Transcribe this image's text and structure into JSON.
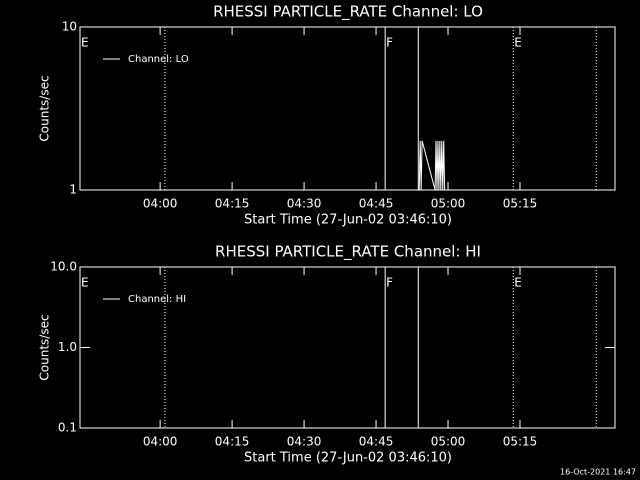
{
  "chart_data": [
    {
      "type": "line",
      "title": "RHESSI PARTICLE_RATE Channel: LO",
      "xlabel": "Start Time (27-Jun-02 03:46:10)",
      "ylabel": "Counts/sec",
      "log_y": true,
      "xlim": [
        223.3,
        334.8
      ],
      "ylim": [
        1,
        10
      ],
      "xticks": [
        {
          "value": 240,
          "label": "04:00"
        },
        {
          "value": 255,
          "label": "04:15"
        },
        {
          "value": 270,
          "label": "04:30"
        },
        {
          "value": 285,
          "label": "04:45"
        },
        {
          "value": 300,
          "label": "05:00"
        },
        {
          "value": 315,
          "label": "05:15"
        }
      ],
      "yticks": [
        1,
        10
      ],
      "vlines": [
        {
          "x": 241.0,
          "style": "dotted"
        },
        {
          "x": 286.9,
          "style": "solid"
        },
        {
          "x": 293.8,
          "style": "solid"
        },
        {
          "x": 313.6,
          "style": "dotted"
        },
        {
          "x": 330.9,
          "style": "dotted"
        }
      ],
      "annotations": [
        {
          "x": 223.3,
          "text": "E"
        },
        {
          "x": 286.9,
          "text": "F"
        },
        {
          "x": 313.6,
          "text": "E"
        }
      ],
      "series": [
        {
          "name": "Channel: LO",
          "color": "#ffffff",
          "x": [
            294.0,
            294.2,
            294.4,
            294.6,
            297.3,
            297.5,
            297.7,
            297.9,
            298.1,
            298.3,
            298.5,
            298.7,
            298.9,
            299.1,
            299.3
          ],
          "values": [
            1,
            2,
            1,
            2,
            1,
            2,
            1,
            2,
            1,
            2,
            1,
            2,
            1,
            2,
            1
          ]
        }
      ]
    },
    {
      "type": "line",
      "title": "RHESSI PARTICLE_RATE Channel: HI",
      "xlabel": "Start Time (27-Jun-02 03:46:10)",
      "ylabel": "Counts/sec",
      "log_y": true,
      "xlim": [
        223.3,
        334.8
      ],
      "ylim": [
        0.1,
        10
      ],
      "xticks": [
        {
          "value": 240,
          "label": "04:00"
        },
        {
          "value": 255,
          "label": "04:15"
        },
        {
          "value": 270,
          "label": "04:30"
        },
        {
          "value": 285,
          "label": "04:45"
        },
        {
          "value": 300,
          "label": "05:00"
        },
        {
          "value": 315,
          "label": "05:15"
        }
      ],
      "yticks": [
        {
          "value": 0.1,
          "label": "0.1"
        },
        {
          "value": 1,
          "label": "1.0"
        },
        {
          "value": 10,
          "label": "10.0"
        }
      ],
      "vlines": [
        {
          "x": 241.0,
          "style": "dotted"
        },
        {
          "x": 286.9,
          "style": "solid"
        },
        {
          "x": 293.8,
          "style": "solid"
        },
        {
          "x": 313.6,
          "style": "dotted"
        },
        {
          "x": 330.9,
          "style": "dotted"
        }
      ],
      "annotations": [
        {
          "x": 223.3,
          "text": "E"
        },
        {
          "x": 286.9,
          "text": "F"
        },
        {
          "x": 313.6,
          "text": "E"
        }
      ],
      "series": [
        {
          "name": "Channel: HI",
          "color": "#ffffff",
          "x": [],
          "values": []
        }
      ]
    }
  ],
  "footer": "16-Oct-2021 16:47"
}
